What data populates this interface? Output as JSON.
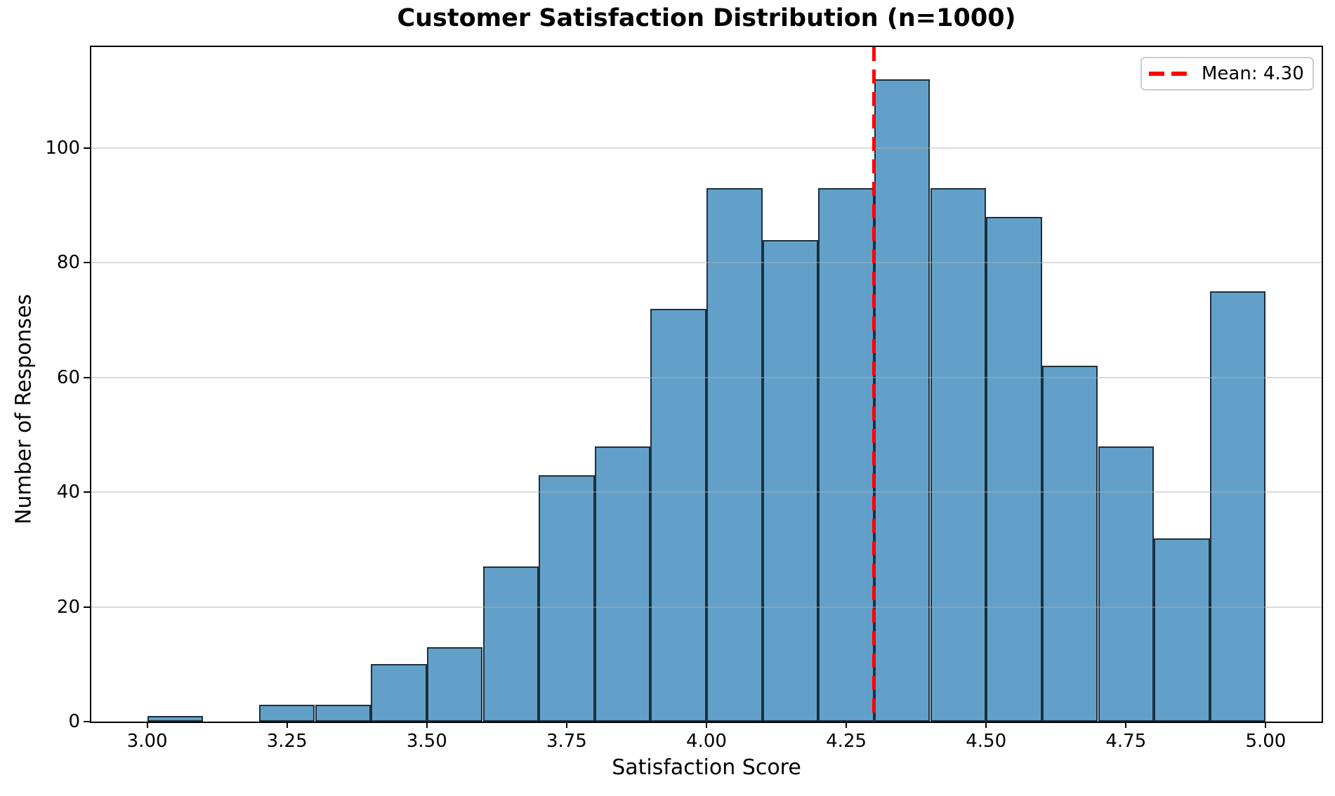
{
  "figure": {
    "title": "Customer Satisfaction Distribution (n=1000)",
    "xlabel": "Satisfaction Score",
    "ylabel": "Number of Responses"
  },
  "legend": {
    "label": "Mean: 4.30",
    "position": "upper right",
    "line_style": "red-dashed"
  },
  "colors": {
    "bar_fill": "rgba(31,119,180,0.7)",
    "bar_edge": "rgba(0,0,0,0.7)",
    "mean_line": "#ff0000",
    "gridline": "rgba(176,176,176,0.45)",
    "spine": "#000000",
    "text": "#000000",
    "legend_border": "#cccccc"
  },
  "chart_data": {
    "type": "bar",
    "subtype": "histogram",
    "title": "Customer Satisfaction Distribution (n=1000)",
    "xlabel": "Satisfaction Score",
    "ylabel": "Number of Responses",
    "n_total": 1000,
    "bin_edges": [
      3.0,
      3.1,
      3.2,
      3.3,
      3.4,
      3.5,
      3.6,
      3.7,
      3.8,
      3.9,
      4.0,
      4.1,
      4.2,
      4.3,
      4.4,
      4.5,
      4.6,
      4.7,
      4.8,
      4.9,
      5.0
    ],
    "values": [
      1,
      0,
      3,
      3,
      10,
      13,
      27,
      43,
      48,
      72,
      93,
      84,
      93,
      112,
      93,
      88,
      62,
      48,
      32,
      75
    ],
    "mean": 4.3,
    "mean_label": "Mean: 4.30",
    "xlim": [
      2.9,
      5.1
    ],
    "ylim": [
      0,
      117.6
    ],
    "xticks": [
      {
        "v": 3.0,
        "label": "3.00"
      },
      {
        "v": 3.25,
        "label": "3.25"
      },
      {
        "v": 3.5,
        "label": "3.50"
      },
      {
        "v": 3.75,
        "label": "3.75"
      },
      {
        "v": 4.0,
        "label": "4.00"
      },
      {
        "v": 4.25,
        "label": "4.25"
      },
      {
        "v": 4.5,
        "label": "4.50"
      },
      {
        "v": 4.75,
        "label": "4.75"
      },
      {
        "v": 5.0,
        "label": "5.00"
      }
    ],
    "yticks": [
      {
        "v": 0,
        "label": "0"
      },
      {
        "v": 20,
        "label": "20"
      },
      {
        "v": 40,
        "label": "40"
      },
      {
        "v": 60,
        "label": "60"
      },
      {
        "v": 80,
        "label": "80"
      },
      {
        "v": 100,
        "label": "100"
      }
    ],
    "grid": "horizontal",
    "legend_position": "upper right"
  }
}
